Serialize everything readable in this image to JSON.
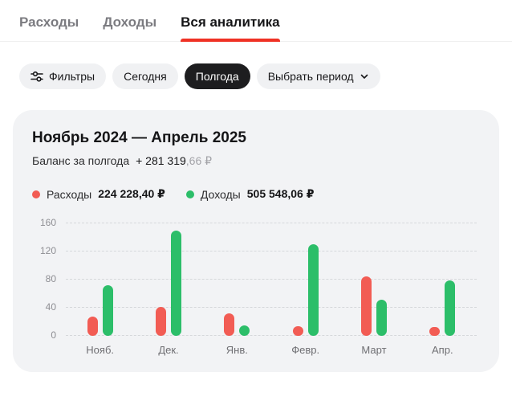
{
  "tabs": [
    {
      "label": "Расходы"
    },
    {
      "label": "Доходы"
    },
    {
      "label": "Вся аналитика"
    }
  ],
  "filters": {
    "filters_chip": "Фильтры",
    "today_chip": "Сегодня",
    "half_year_chip": "Полгода",
    "period_chip": "Выбрать период"
  },
  "card": {
    "title": "Ноябрь 2024 — Апрель 2025",
    "balance_label": "Баланс за полгода",
    "balance_main": "+ 281 319",
    "balance_fraction": ",66 ₽"
  },
  "legend": [
    {
      "name": "Расходы",
      "value": "224 228,40 ₽",
      "color": "#f25c54"
    },
    {
      "name": "Доходы",
      "value": "505 548,06 ₽",
      "color": "#2cbe69"
    }
  ],
  "chart_data": {
    "type": "bar",
    "categories": [
      "Нояб.",
      "Дек.",
      "Янв.",
      "Февр.",
      "Март",
      "Апр."
    ],
    "series": [
      {
        "name": "Расходы",
        "color": "#f25c54",
        "values": [
          28,
          41,
          32,
          14,
          85,
          13
        ]
      },
      {
        "name": "Доходы",
        "color": "#2cbe69",
        "values": [
          72,
          150,
          15,
          130,
          51,
          79
        ]
      }
    ],
    "title": "Ноябрь 2024 — Апрель 2025",
    "xlabel": "",
    "ylabel": "",
    "ylim": [
      0,
      160
    ],
    "yticks": [
      0,
      40,
      80,
      120,
      160
    ],
    "grid": "horizontal-dashed",
    "legend_position": "top-left"
  },
  "colors": {
    "accent_red": "#ef3124",
    "card_bg": "#f2f3f5",
    "chip_bg": "#f0f1f3",
    "chip_active_bg": "#1d1d1f"
  }
}
